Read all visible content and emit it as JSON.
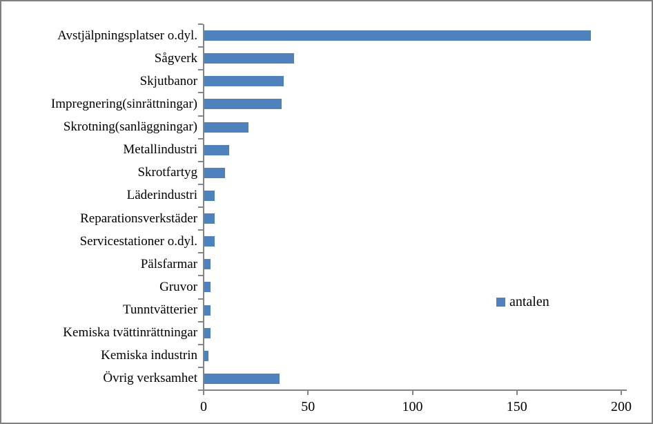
{
  "chart_data": {
    "type": "bar",
    "orientation": "horizontal",
    "title": "",
    "legend": "antalen",
    "legend_position": "right-middle",
    "grid": false,
    "xlabel": "",
    "ylabel": "",
    "xlim": [
      0,
      200
    ],
    "x_ticks": [
      0,
      50,
      100,
      150,
      200
    ],
    "categories": [
      "Avstjälpningsplatser o.dyl.",
      "Sågverk",
      "Skjutbanor",
      "Impregnering(sinrättningar)",
      "Skrotning(sanläggningar)",
      "Metallindustri",
      "Skrotfartyg",
      "Läderindustri",
      "Reparationsverkstäder",
      "Servicestationer o.dyl.",
      "Pälsfarmar",
      "Gruvor",
      "Tunntvätterier",
      "Kemiska tvättinrättningar",
      "Kemiska industrin",
      "Övrig verksamhet"
    ],
    "series": [
      {
        "name": "antalen",
        "values": [
          185,
          43,
          38,
          37,
          21,
          12,
          10,
          5,
          5,
          5,
          3,
          3,
          3,
          3,
          2,
          36
        ]
      }
    ],
    "colors": {
      "bar": "#4f81bd",
      "axis": "#848484",
      "text": "#000000",
      "frame_border": "#7f7f7f",
      "background": "#ffffff"
    }
  }
}
